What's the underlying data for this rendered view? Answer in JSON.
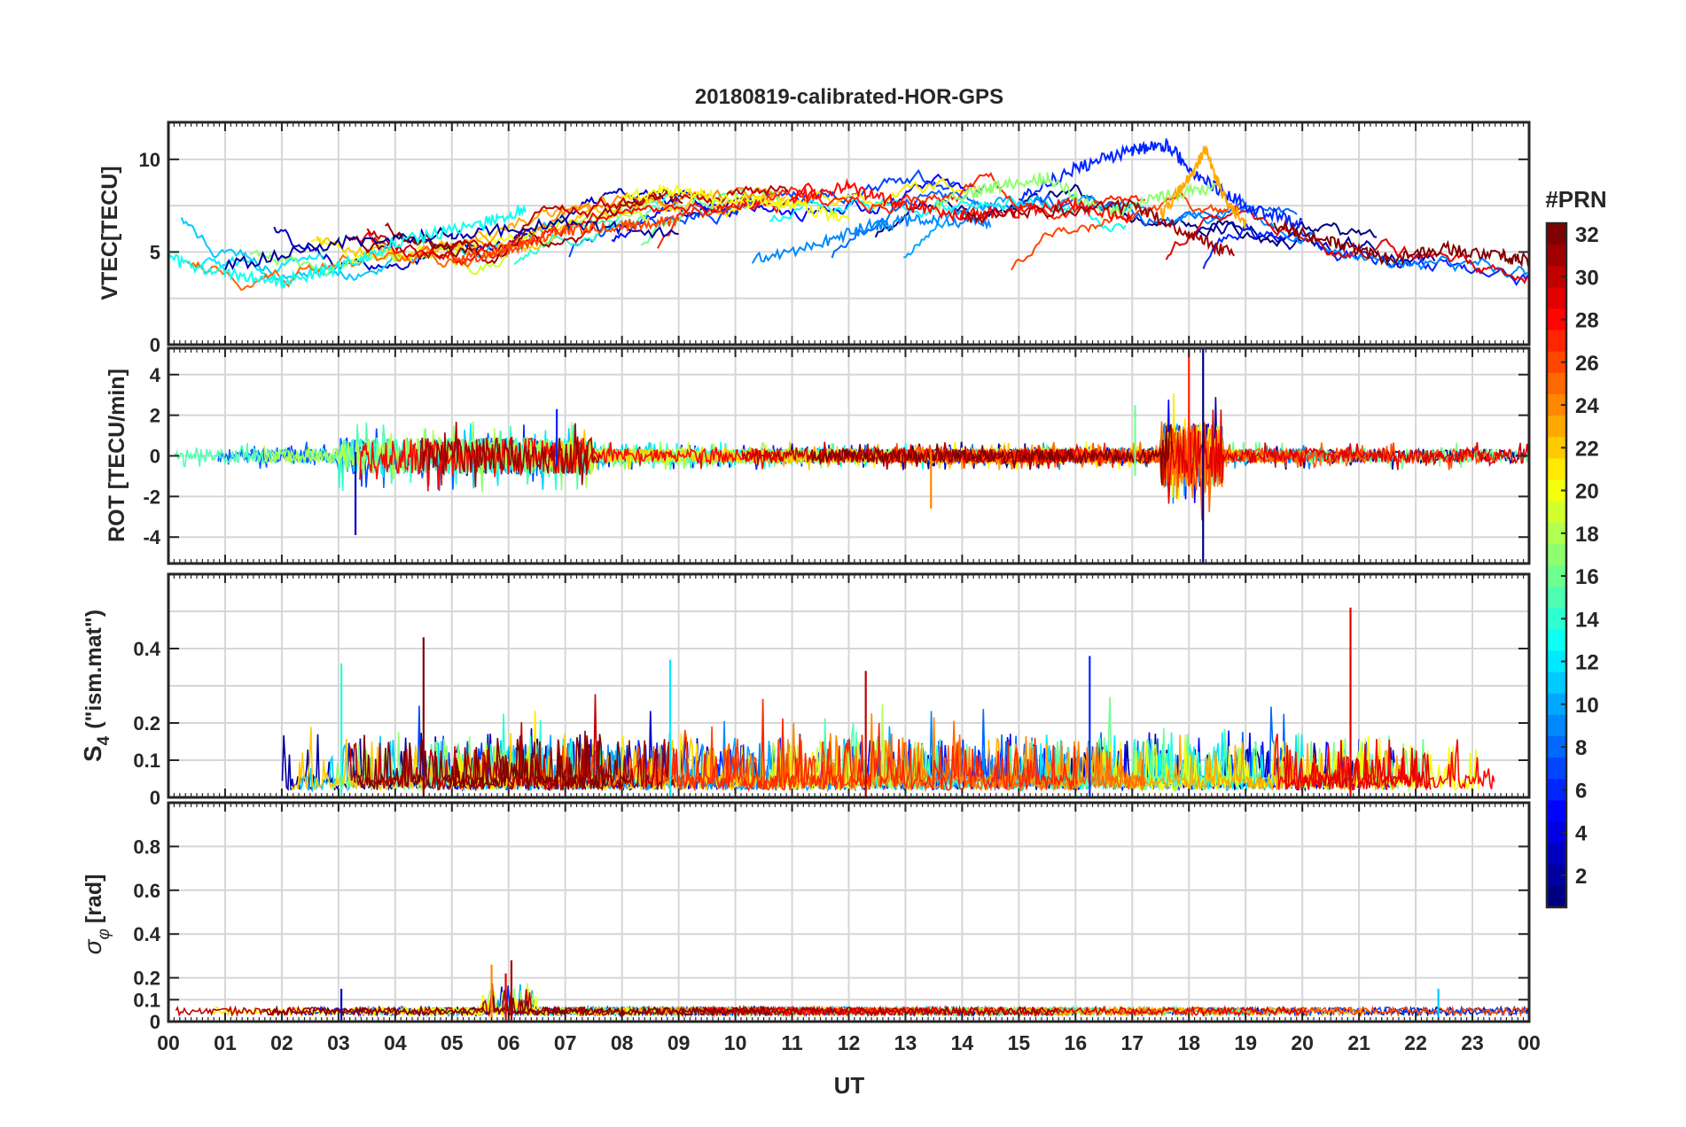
{
  "chart_data": [
    {
      "type": "line",
      "panel": "vtec",
      "title": "20180819-calibrated-HOR-GPS",
      "ylabel": "VTEC[TECU]",
      "ylim": [
        0,
        12
      ],
      "yticks": [
        0,
        5,
        10
      ],
      "ygrid": [
        2.5,
        5,
        7.5,
        10
      ],
      "series": [
        {
          "name": "PRN 2",
          "prn": 2,
          "x": [
            1.0,
            3.0,
            5.0,
            7.0,
            9.0
          ],
          "values": [
            4.2,
            5.5,
            6.0,
            6.5,
            6.0
          ]
        },
        {
          "name": "PRN 6",
          "prn": 6,
          "x": [
            15.0,
            16.0,
            17.0,
            17.6,
            18.2,
            19.0,
            20.0
          ],
          "values": [
            8.0,
            9.5,
            10.5,
            10.8,
            9.0,
            7.5,
            6.5
          ]
        },
        {
          "name": "PRN 9",
          "prn": 9,
          "x": [
            10.3,
            11.5,
            12.5,
            13.5,
            14.5
          ],
          "values": [
            4.5,
            5.5,
            6.5,
            6.8,
            6.5
          ]
        },
        {
          "name": "PRN 13",
          "prn": 13,
          "x": [
            0.0,
            1.0,
            2.0,
            3.0,
            4.0,
            5.5,
            6.3
          ],
          "values": [
            4.6,
            3.9,
            3.4,
            4.2,
            5.5,
            6.5,
            7.4
          ]
        },
        {
          "name": "PRN 17",
          "prn": 17,
          "x": [
            13.5,
            14.5,
            15.5,
            16.5,
            17.5,
            18.5
          ],
          "values": [
            7.5,
            8.5,
            9.0,
            7.0,
            8.0,
            8.5
          ]
        },
        {
          "name": "PRN 20",
          "prn": 20,
          "x": [
            8.0,
            9.0,
            10.0,
            11.0,
            12.0
          ],
          "values": [
            8.0,
            8.3,
            7.8,
            7.5,
            6.8
          ]
        },
        {
          "name": "PRN 23",
          "prn": 23,
          "x": [
            17.5,
            18.0,
            18.3,
            18.6,
            19.0
          ],
          "values": [
            7.0,
            9.0,
            10.5,
            8.0,
            6.5
          ]
        },
        {
          "name": "PRN 26",
          "prn": 26,
          "x": [
            5.0,
            6.0,
            7.0,
            8.0,
            9.0
          ],
          "values": [
            4.5,
            5.2,
            6.2,
            6.4,
            6.8
          ]
        },
        {
          "name": "PRN 28",
          "prn": 28,
          "x": [
            11.0,
            12.0,
            13.0,
            14.0,
            15.0,
            16.0,
            17.0
          ],
          "values": [
            8.0,
            8.5,
            7.5,
            7.0,
            7.2,
            7.6,
            6.8
          ]
        },
        {
          "name": "PRN 31",
          "prn": 31,
          "x": [
            14.0,
            15.5,
            17.0,
            18.0,
            18.8
          ],
          "values": [
            6.8,
            7.2,
            7.5,
            6.0,
            4.8
          ]
        },
        {
          "name": "PRN 32",
          "prn": 32,
          "x": [
            19.5,
            20.5,
            21.5,
            22.5,
            23.5,
            24.0
          ],
          "values": [
            6.5,
            5.5,
            4.6,
            5.2,
            4.8,
            4.5
          ]
        }
      ]
    },
    {
      "type": "line",
      "panel": "rot",
      "ylabel": "ROT [TECU/min]",
      "ylim": [
        -5.3,
        5.3
      ],
      "yticks": [
        -4,
        -2,
        0,
        2,
        4
      ],
      "ygrid": [
        -4,
        -2,
        0,
        2,
        4
      ],
      "series": [
        {
          "name": "PRN 1",
          "prn": 1,
          "x": [
            18.25,
            18.25
          ],
          "values": [
            5.3,
            -5.3
          ]
        },
        {
          "name": "PRN 3",
          "prn": 3,
          "x": [
            3.3,
            3.3
          ],
          "values": [
            0.2,
            -3.9
          ]
        },
        {
          "name": "PRN 27",
          "prn": 27,
          "x": [
            18.0,
            18.0
          ],
          "values": [
            5.3,
            -1.5
          ]
        },
        {
          "name": "PRN 24",
          "prn": 24,
          "x": [
            13.45,
            13.45
          ],
          "values": [
            0.2,
            -2.6
          ]
        },
        {
          "name": "PRN 6",
          "prn": 6,
          "x": [
            6.85,
            6.85
          ],
          "values": [
            2.3,
            -0.5
          ]
        },
        {
          "name": "PRN 16",
          "prn": 16,
          "x": [
            17.05,
            17.05
          ],
          "values": [
            2.5,
            -1.0
          ]
        }
      ]
    },
    {
      "type": "line",
      "panel": "s4",
      "ylabel_main": "S",
      "ylabel_sub": "4",
      "ylabel_tail": "(\"ism.mat\")",
      "ylim": [
        0,
        0.6
      ],
      "yticks": [
        0,
        0.1,
        0.2,
        0.4
      ],
      "ygrid": [
        0.1,
        0.2,
        0.3,
        0.4,
        0.5
      ],
      "series": [
        {
          "name": "PRN 29",
          "prn": 29,
          "x": [
            20.85,
            20.85
          ],
          "values": [
            0.51,
            0.0
          ]
        },
        {
          "name": "PRN 32",
          "prn": 32,
          "x": [
            4.5,
            4.5
          ],
          "values": [
            0.43,
            0.0
          ]
        },
        {
          "name": "PRN 6",
          "prn": 6,
          "x": [
            16.25,
            16.25
          ],
          "values": [
            0.38,
            0.0
          ]
        },
        {
          "name": "PRN 14",
          "prn": 14,
          "x": [
            3.05,
            3.05
          ],
          "values": [
            0.36,
            0.0
          ]
        },
        {
          "name": "PRN 12",
          "prn": 12,
          "x": [
            8.85,
            8.85
          ],
          "values": [
            0.37,
            0.0
          ]
        },
        {
          "name": "PRN 30",
          "prn": 30,
          "x": [
            12.3,
            12.3
          ],
          "values": [
            0.34,
            0.0
          ]
        }
      ]
    },
    {
      "type": "line",
      "panel": "sigma_phi",
      "ylabel_main": "σ",
      "ylabel_sub": "φ",
      "ylabel_tail": "[rad]",
      "ylim": [
        0,
        1.0
      ],
      "yticks": [
        0,
        0.1,
        0.2,
        0.4,
        0.6,
        0.8
      ],
      "ygrid": [
        0.1,
        0.2,
        0.4,
        0.6,
        0.8
      ],
      "xlabel": "UT",
      "xlim": [
        0,
        24
      ],
      "xticklabels": [
        "00",
        "01",
        "02",
        "03",
        "04",
        "05",
        "06",
        "07",
        "08",
        "09",
        "10",
        "11",
        "12",
        "13",
        "14",
        "15",
        "16",
        "17",
        "18",
        "19",
        "20",
        "21",
        "22",
        "23",
        "00"
      ],
      "series": [
        {
          "name": "PRN 31",
          "prn": 31,
          "x": [
            6.05,
            6.05
          ],
          "values": [
            0.28,
            0.0
          ]
        },
        {
          "name": "PRN 24",
          "prn": 24,
          "x": [
            5.7,
            5.7
          ],
          "values": [
            0.26,
            0.0
          ]
        },
        {
          "name": "PRN 29",
          "prn": 29,
          "x": [
            5.95,
            5.95
          ],
          "values": [
            0.22,
            0.0
          ]
        },
        {
          "name": "PRN 11",
          "prn": 11,
          "x": [
            22.4,
            22.4
          ],
          "values": [
            0.15,
            0.0
          ]
        },
        {
          "name": "PRN 3",
          "prn": 3,
          "x": [
            3.05,
            3.05
          ],
          "values": [
            0.15,
            0.0
          ]
        }
      ]
    }
  ],
  "colorbar": {
    "label": "#PRN",
    "min": 1,
    "max": 32,
    "ticks": [
      2,
      4,
      6,
      8,
      10,
      12,
      14,
      16,
      18,
      20,
      22,
      24,
      26,
      28,
      30,
      32
    ],
    "colormap": "jet"
  }
}
